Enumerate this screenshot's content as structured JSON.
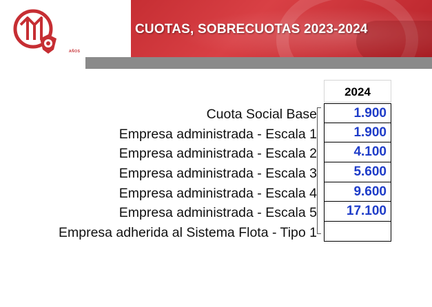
{
  "header": {
    "title": "CUOTAS, SOBRECUOTAS 2023-2024",
    "logo_text": "AÑOS",
    "brand_color": "#c62e33"
  },
  "table": {
    "year": "2024",
    "rows": [
      {
        "label": "Cuota Social Base",
        "value": "1.900"
      },
      {
        "label": "Empresa administrada - Escala 1",
        "value": "1.900"
      },
      {
        "label": "Empresa administrada - Escala 2",
        "value": "4.100"
      },
      {
        "label": "Empresa administrada - Escala 3",
        "value": "5.600"
      },
      {
        "label": "Empresa administrada - Escala 4",
        "value": "9.600"
      },
      {
        "label": "Empresa administrada - Escala 5",
        "value": "17.100"
      },
      {
        "label": "Empresa adherida al Sistema Flota - Tipo 1",
        "value": ""
      }
    ],
    "value_color": "#1e3cc8"
  }
}
